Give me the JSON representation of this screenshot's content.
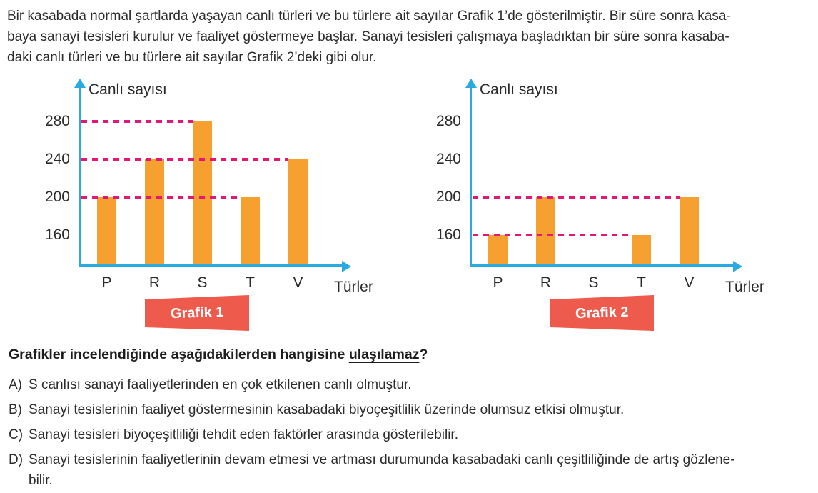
{
  "intro": {
    "lines": [
      "Bir kasabada normal şartlarda yaşayan canlı türleri ve bu türlere ait sayılar Grafik 1’de gösterilmiştir. Bir süre sonra kasa-",
      "baya sanayi tesisleri kurulur ve faaliyet göstermeye başlar. Sanayi tesisleri çalışmaya başladıktan bir süre sonra kasaba-",
      "daki canlı türleri ve bu türlere ait sayılar Grafik 2’deki gibi olur."
    ]
  },
  "question": {
    "prefix": "Grafikler incelendiğinde aşağıdakilerden hangisine ",
    "underlined": "ulaşılamaz",
    "suffix": "?"
  },
  "options": [
    {
      "letter": "A)",
      "lines": [
        "S canlısı sanayi faaliyetlerinden en çok etkilenen canlı olmuştur."
      ]
    },
    {
      "letter": "B)",
      "lines": [
        "Sanayi tesislerinin faaliyet göstermesinin kasabadaki biyoçeşitlilik üzerinde olumsuz etkisi olmuştur."
      ]
    },
    {
      "letter": "C)",
      "lines": [
        "Sanayi tesisleri biyoçeşitliliği tehdit eden faktörler arasında gösterilebilir."
      ]
    },
    {
      "letter": "D)",
      "lines": [
        "Sanayi tesislerinin faaliyetlerinin devam etmesi ve artması durumunda kasabadaki canlı çeşitliliğinde de artış gözlene-",
        "bilir."
      ]
    }
  ],
  "colors": {
    "axis": "#29abe2",
    "bar": "#f6a12f",
    "dash": "#e31777",
    "banner": "#ee5a4c",
    "banner_text": "#ffffff"
  },
  "chart_data": [
    {
      "type": "bar",
      "title": "",
      "caption": "Grafik 1",
      "ylabel": "Canlı sayısı",
      "xlabel": "Türler",
      "categories": [
        "P",
        "R",
        "S",
        "T",
        "V"
      ],
      "values": [
        200,
        240,
        280,
        200,
        240
      ],
      "yticks": [
        160,
        200,
        240,
        280
      ],
      "ylim": [
        129,
        310
      ],
      "grid": false,
      "dashed_guides": [
        {
          "value": 280,
          "to_category": "S"
        },
        {
          "value": 240,
          "to_category": "V"
        },
        {
          "value": 200,
          "to_category": "T"
        }
      ]
    },
    {
      "type": "bar",
      "title": "",
      "caption": "Grafik 2",
      "ylabel": "Canlı sayısı",
      "xlabel": "Türler",
      "categories": [
        "P",
        "R",
        "S",
        "T",
        "V"
      ],
      "values": [
        160,
        200,
        null,
        160,
        200
      ],
      "yticks": [
        160,
        200,
        240,
        280
      ],
      "ylim": [
        129,
        310
      ],
      "grid": false,
      "dashed_guides": [
        {
          "value": 200,
          "to_category": "V"
        },
        {
          "value": 160,
          "to_category": "T"
        }
      ]
    }
  ]
}
